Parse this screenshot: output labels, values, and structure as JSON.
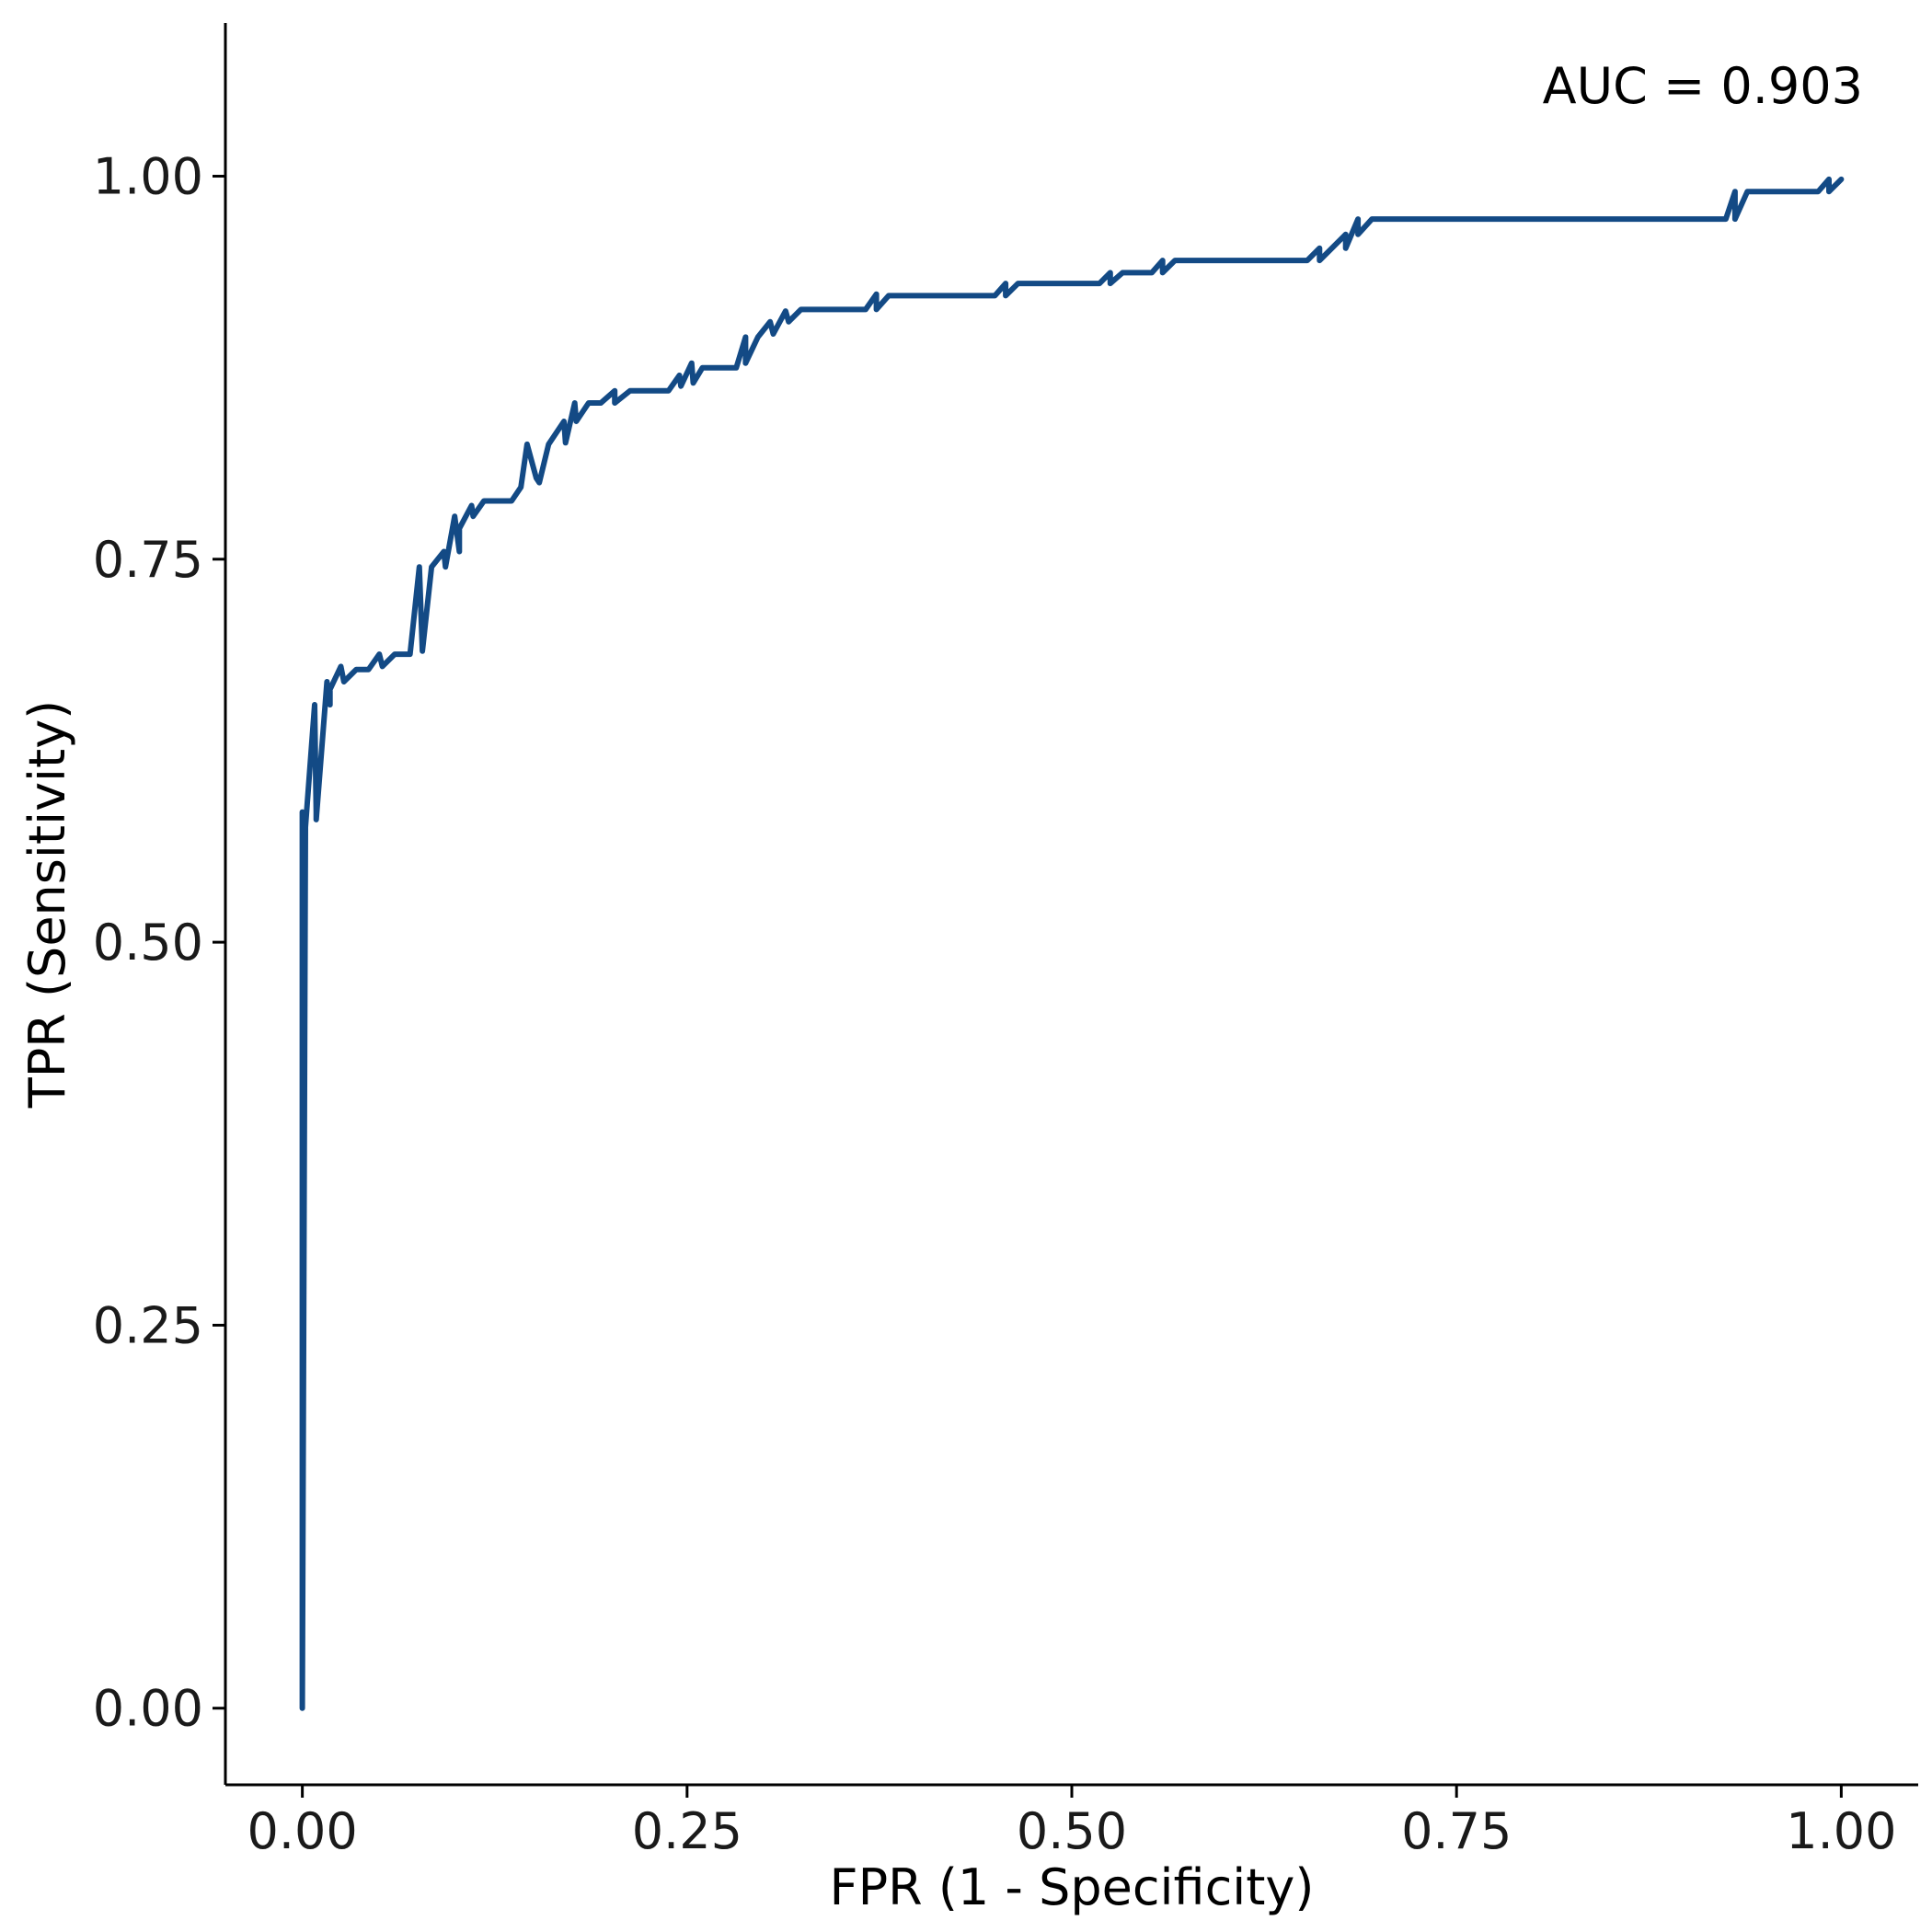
{
  "chart_data": {
    "type": "line",
    "title": "",
    "xlabel": "FPR (1 - Specificity)",
    "ylabel": "TPR (Sensitivity)",
    "annotation": "AUC = 0.903",
    "xlim": [
      -0.05,
      1.05
    ],
    "ylim": [
      -0.05,
      1.1
    ],
    "x_ticks": [
      0,
      0.25,
      0.5,
      0.75,
      1
    ],
    "x_tick_labels": [
      "0.00",
      "0.25",
      "0.50",
      "0.75",
      "1.00"
    ],
    "y_ticks": [
      0,
      0.25,
      0.5,
      0.75,
      1
    ],
    "y_tick_labels": [
      "0.00",
      "0.25",
      "0.50",
      "0.75",
      "1.00"
    ],
    "grid": false,
    "legend": "none",
    "line_color": "#134a85",
    "series": [
      {
        "x": [
          0.0,
          0.0,
          0.002,
          0.008,
          0.009,
          0.009,
          0.016,
          0.018,
          0.018,
          0.025,
          0.027,
          0.035,
          0.043,
          0.05,
          0.052,
          0.06,
          0.07,
          0.076,
          0.078,
          0.084,
          0.092,
          0.093,
          0.099,
          0.102,
          0.102,
          0.11,
          0.111,
          0.118,
          0.136,
          0.142,
          0.146,
          0.152,
          0.154,
          0.16,
          0.17,
          0.171,
          0.177,
          0.178,
          0.186,
          0.194,
          0.203,
          0.203,
          0.213,
          0.238,
          0.245,
          0.246,
          0.253,
          0.254,
          0.26,
          0.282,
          0.288,
          0.288,
          0.296,
          0.304,
          0.306,
          0.314,
          0.316,
          0.324,
          0.366,
          0.373,
          0.373,
          0.381,
          0.45,
          0.457,
          0.457,
          0.465,
          0.518,
          0.525,
          0.525,
          0.533,
          0.552,
          0.559,
          0.559,
          0.567,
          0.653,
          0.661,
          0.661,
          0.669,
          0.678,
          0.678,
          0.686,
          0.686,
          0.695,
          0.925,
          0.931,
          0.931,
          0.939,
          0.985,
          0.992,
          0.992,
          1.0
        ],
        "y": [
          0.585,
          0.0,
          0.575,
          0.655,
          0.585,
          0.58,
          0.67,
          0.655,
          0.665,
          0.68,
          0.67,
          0.678,
          0.678,
          0.688,
          0.68,
          0.688,
          0.688,
          0.745,
          0.69,
          0.745,
          0.755,
          0.745,
          0.778,
          0.755,
          0.77,
          0.785,
          0.778,
          0.788,
          0.788,
          0.797,
          0.825,
          0.803,
          0.8,
          0.825,
          0.84,
          0.826,
          0.852,
          0.84,
          0.852,
          0.852,
          0.86,
          0.852,
          0.86,
          0.86,
          0.87,
          0.863,
          0.878,
          0.865,
          0.875,
          0.875,
          0.895,
          0.878,
          0.895,
          0.905,
          0.897,
          0.912,
          0.905,
          0.913,
          0.913,
          0.923,
          0.913,
          0.922,
          0.922,
          0.93,
          0.922,
          0.93,
          0.93,
          0.937,
          0.93,
          0.937,
          0.937,
          0.945,
          0.937,
          0.945,
          0.945,
          0.953,
          0.945,
          0.953,
          0.962,
          0.953,
          0.972,
          0.962,
          0.972,
          0.972,
          0.99,
          0.972,
          0.99,
          0.99,
          0.998,
          0.99,
          0.998
        ]
      }
    ]
  }
}
